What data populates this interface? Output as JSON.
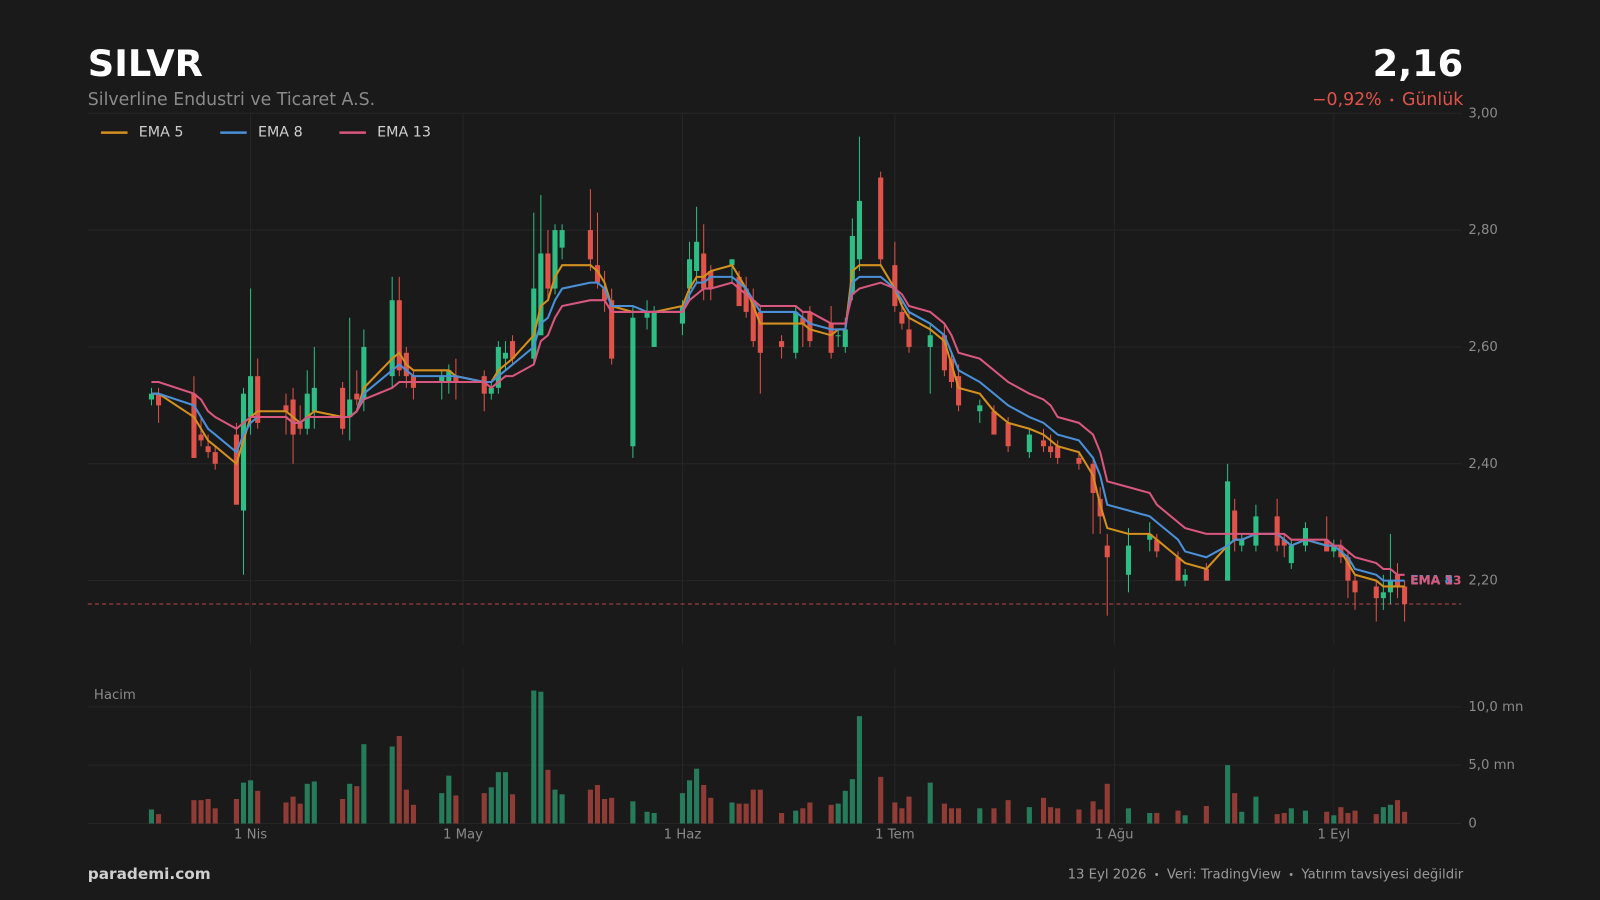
{
  "header": {
    "symbol": "SILVR",
    "company": "Silverline Endustri ve Ticaret A.S.",
    "price": "2,16",
    "change": "−0,92%",
    "period": "Günlük"
  },
  "footer": {
    "site": "parademi.com",
    "notes": [
      "13 Eyl 2026",
      "Veri: TradingView",
      "Yatırım tavsiyesi değildir"
    ]
  },
  "chart_data": {
    "type": "candlestick",
    "x": [
      "2026-03-18",
      "2026-03-19",
      "2026-03-24",
      "2026-03-25",
      "2026-03-26",
      "2026-03-27",
      "2026-03-30",
      "2026-03-31",
      "2026-04-01",
      "2026-04-02",
      "2026-04-06",
      "2026-04-07",
      "2026-04-08",
      "2026-04-09",
      "2026-04-10",
      "2026-04-14",
      "2026-04-15",
      "2026-04-16",
      "2026-04-17",
      "2026-04-21",
      "2026-04-22",
      "2026-04-23",
      "2026-04-24",
      "2026-04-28",
      "2026-04-29",
      "2026-04-30",
      "2026-05-04",
      "2026-05-05",
      "2026-05-06",
      "2026-05-07",
      "2026-05-08",
      "2026-05-11",
      "2026-05-12",
      "2026-05-13",
      "2026-05-14",
      "2026-05-15",
      "2026-05-19",
      "2026-05-20",
      "2026-05-21",
      "2026-05-22",
      "2026-05-25",
      "2026-05-27",
      "2026-05-28",
      "2026-06-01",
      "2026-06-02",
      "2026-06-03",
      "2026-06-04",
      "2026-06-05",
      "2026-06-08",
      "2026-06-09",
      "2026-06-10",
      "2026-06-11",
      "2026-06-12",
      "2026-06-15",
      "2026-06-17",
      "2026-06-18",
      "2026-06-19",
      "2026-06-22",
      "2026-06-23",
      "2026-06-24",
      "2026-06-25",
      "2026-06-26",
      "2026-06-29",
      "2026-07-01",
      "2026-07-02",
      "2026-07-03",
      "2026-07-06",
      "2026-07-08",
      "2026-07-09",
      "2026-07-10",
      "2026-07-13",
      "2026-07-15",
      "2026-07-17",
      "2026-07-20",
      "2026-07-22",
      "2026-07-23",
      "2026-07-24",
      "2026-07-27",
      "2026-07-29",
      "2026-07-30",
      "2026-07-31",
      "2026-08-03",
      "2026-08-06",
      "2026-08-07",
      "2026-08-10",
      "2026-08-11",
      "2026-08-14",
      "2026-08-17",
      "2026-08-18",
      "2026-08-19",
      "2026-08-21",
      "2026-08-24",
      "2026-08-25",
      "2026-08-26",
      "2026-08-28",
      "2026-08-31",
      "2026-09-01",
      "2026-09-02",
      "2026-09-03",
      "2026-09-04",
      "2026-09-07",
      "2026-09-08",
      "2026-09-09",
      "2026-09-10",
      "2026-09-11"
    ],
    "open": [
      2.51,
      2.52,
      2.52,
      2.45,
      2.43,
      2.42,
      2.45,
      2.32,
      2.48,
      2.55,
      2.5,
      2.51,
      2.47,
      2.46,
      2.49,
      2.53,
      2.48,
      2.52,
      2.51,
      2.55,
      2.68,
      2.59,
      2.55,
      2.54,
      2.54,
      2.55,
      2.55,
      2.52,
      2.53,
      2.58,
      2.61,
      2.58,
      2.62,
      2.76,
      2.7,
      2.77,
      2.8,
      2.74,
      2.7,
      2.68,
      2.43,
      2.65,
      2.6,
      2.64,
      2.7,
      2.73,
      2.76,
      2.73,
      2.74,
      2.72,
      2.7,
      2.68,
      2.66,
      2.61,
      2.59,
      2.65,
      2.66,
      2.64,
      2.62,
      2.6,
      2.69,
      2.75,
      2.89,
      2.74,
      2.66,
      2.63,
      2.6,
      2.62,
      2.58,
      2.55,
      2.49,
      2.49,
      2.47,
      2.42,
      2.44,
      2.43,
      2.43,
      2.41,
      2.4,
      2.34,
      2.26,
      2.21,
      2.27,
      2.27,
      2.24,
      2.2,
      2.22,
      2.2,
      2.32,
      2.26,
      2.26,
      2.31,
      2.27,
      2.23,
      2.26,
      2.27,
      2.25,
      2.26,
      2.24,
      2.2,
      2.19,
      2.17,
      2.18,
      2.21,
      2.19
    ],
    "high": [
      2.53,
      2.53,
      2.55,
      2.48,
      2.45,
      2.43,
      2.47,
      2.53,
      2.7,
      2.58,
      2.52,
      2.53,
      2.5,
      2.56,
      2.6,
      2.54,
      2.65,
      2.56,
      2.63,
      2.72,
      2.72,
      2.6,
      2.56,
      2.56,
      2.57,
      2.58,
      2.56,
      2.54,
      2.61,
      2.61,
      2.62,
      2.83,
      2.86,
      2.8,
      2.81,
      2.81,
      2.87,
      2.83,
      2.73,
      2.7,
      2.67,
      2.68,
      2.67,
      2.68,
      2.78,
      2.84,
      2.81,
      2.74,
      2.75,
      2.73,
      2.72,
      2.7,
      2.67,
      2.62,
      2.67,
      2.66,
      2.67,
      2.67,
      2.63,
      2.65,
      2.82,
      2.96,
      2.9,
      2.78,
      2.68,
      2.66,
      2.64,
      2.64,
      2.59,
      2.57,
      2.51,
      2.5,
      2.48,
      2.46,
      2.46,
      2.45,
      2.44,
      2.42,
      2.41,
      2.36,
      2.28,
      2.29,
      2.3,
      2.28,
      2.25,
      2.22,
      2.23,
      2.4,
      2.34,
      2.28,
      2.33,
      2.34,
      2.28,
      2.27,
      2.3,
      2.31,
      2.27,
      2.27,
      2.25,
      2.21,
      2.2,
      2.21,
      2.28,
      2.23,
      2.2
    ],
    "low": [
      2.5,
      2.47,
      2.41,
      2.43,
      2.41,
      2.39,
      2.33,
      2.21,
      2.45,
      2.46,
      2.45,
      2.4,
      2.45,
      2.45,
      2.46,
      2.45,
      2.44,
      2.5,
      2.49,
      2.53,
      2.55,
      2.53,
      2.51,
      2.51,
      2.52,
      2.51,
      2.49,
      2.51,
      2.52,
      2.56,
      2.57,
      2.57,
      2.62,
      2.68,
      2.69,
      2.75,
      2.73,
      2.7,
      2.66,
      2.57,
      2.41,
      2.63,
      2.6,
      2.62,
      2.68,
      2.71,
      2.68,
      2.68,
      2.71,
      2.67,
      2.65,
      2.6,
      2.52,
      2.58,
      2.58,
      2.6,
      2.6,
      2.58,
      2.6,
      2.59,
      2.68,
      2.73,
      2.74,
      2.66,
      2.63,
      2.59,
      2.52,
      2.55,
      2.53,
      2.49,
      2.47,
      2.45,
      2.42,
      2.41,
      2.42,
      2.41,
      2.4,
      2.39,
      2.28,
      2.28,
      2.14,
      2.18,
      2.25,
      2.24,
      2.2,
      2.19,
      2.2,
      2.2,
      2.25,
      2.25,
      2.25,
      2.25,
      2.24,
      2.22,
      2.25,
      2.25,
      2.24,
      2.23,
      2.17,
      2.15,
      2.13,
      2.15,
      2.16,
      2.17,
      2.13
    ],
    "close": [
      2.52,
      2.5,
      2.41,
      2.44,
      2.42,
      2.4,
      2.33,
      2.52,
      2.55,
      2.47,
      2.49,
      2.45,
      2.46,
      2.52,
      2.53,
      2.46,
      2.51,
      2.51,
      2.6,
      2.68,
      2.56,
      2.55,
      2.53,
      2.55,
      2.56,
      2.54,
      2.52,
      2.53,
      2.6,
      2.59,
      2.58,
      2.7,
      2.76,
      2.7,
      2.8,
      2.8,
      2.75,
      2.71,
      2.68,
      2.58,
      2.65,
      2.66,
      2.66,
      2.67,
      2.75,
      2.78,
      2.7,
      2.7,
      2.75,
      2.67,
      2.66,
      2.61,
      2.59,
      2.6,
      2.66,
      2.64,
      2.61,
      2.59,
      2.62,
      2.63,
      2.79,
      2.85,
      2.75,
      2.67,
      2.64,
      2.6,
      2.62,
      2.56,
      2.54,
      2.5,
      2.5,
      2.45,
      2.43,
      2.45,
      2.43,
      2.42,
      2.41,
      2.4,
      2.35,
      2.31,
      2.24,
      2.26,
      2.28,
      2.25,
      2.2,
      2.21,
      2.2,
      2.37,
      2.27,
      2.27,
      2.31,
      2.26,
      2.26,
      2.26,
      2.29,
      2.25,
      2.26,
      2.24,
      2.2,
      2.18,
      2.17,
      2.18,
      2.2,
      2.19,
      2.16
    ],
    "volume": [
      1200000,
      800000,
      2000000,
      2000000,
      2100000,
      1300000,
      2100000,
      3500000,
      3700000,
      2800000,
      1800000,
      2300000,
      1700000,
      3400000,
      3600000,
      2100000,
      3400000,
      3200000,
      6800000,
      6600000,
      7500000,
      2900000,
      1600000,
      2600000,
      4100000,
      2400000,
      2600000,
      3100000,
      4400000,
      4400000,
      2500000,
      11400000,
      11300000,
      4600000,
      2900000,
      2500000,
      2900000,
      3300000,
      2100000,
      2200000,
      1900000,
      1000000,
      900000,
      2600000,
      3700000,
      4700000,
      3300000,
      2200000,
      1800000,
      1700000,
      1700000,
      2900000,
      2900000,
      900000,
      1100000,
      1300000,
      1800000,
      1600000,
      1700000,
      2800000,
      3800000,
      9200000,
      4000000,
      1800000,
      1300000,
      2300000,
      3500000,
      1700000,
      1300000,
      1300000,
      1300000,
      1300000,
      2000000,
      1400000,
      2200000,
      1400000,
      1300000,
      1200000,
      1900000,
      1200000,
      3400000,
      1300000,
      900000,
      900000,
      1100000,
      700000,
      1500000,
      5000000,
      2600000,
      1000000,
      2300000,
      800000,
      900000,
      1300000,
      1100000,
      1000000,
      700000,
      1400000,
      900000,
      1100000,
      800000,
      1400000,
      1600000,
      2000000,
      1000000
    ],
    "series": [
      {
        "name": "EMA 5",
        "color": "#d4901e",
        "values": [
          2.52,
          2.52,
          2.48,
          2.46,
          2.44,
          2.43,
          2.4,
          2.44,
          2.48,
          2.49,
          2.49,
          2.48,
          2.47,
          2.48,
          2.49,
          2.48,
          2.48,
          2.49,
          2.53,
          2.58,
          2.59,
          2.57,
          2.56,
          2.56,
          2.56,
          2.55,
          2.54,
          2.54,
          2.56,
          2.57,
          2.58,
          2.62,
          2.67,
          2.68,
          2.72,
          2.74,
          2.74,
          2.73,
          2.71,
          2.67,
          2.66,
          2.66,
          2.66,
          2.67,
          2.7,
          2.72,
          2.72,
          2.73,
          2.74,
          2.72,
          2.7,
          2.67,
          2.64,
          2.64,
          2.64,
          2.64,
          2.63,
          2.62,
          2.63,
          2.63,
          2.73,
          2.74,
          2.74,
          2.7,
          2.67,
          2.65,
          2.63,
          2.61,
          2.57,
          2.53,
          2.52,
          2.49,
          2.47,
          2.46,
          2.45,
          2.44,
          2.43,
          2.42,
          2.38,
          2.33,
          2.29,
          2.28,
          2.28,
          2.27,
          2.24,
          2.23,
          2.22,
          2.26,
          2.27,
          2.27,
          2.28,
          2.28,
          2.27,
          2.26,
          2.27,
          2.26,
          2.26,
          2.25,
          2.23,
          2.21,
          2.2,
          2.19,
          2.19,
          2.19,
          2.19
        ]
      },
      {
        "name": "EMA 8",
        "color": "#4a90d9",
        "values": [
          2.52,
          2.52,
          2.5,
          2.48,
          2.46,
          2.45,
          2.42,
          2.45,
          2.47,
          2.48,
          2.48,
          2.47,
          2.47,
          2.48,
          2.48,
          2.48,
          2.48,
          2.49,
          2.52,
          2.56,
          2.57,
          2.56,
          2.55,
          2.55,
          2.55,
          2.55,
          2.54,
          2.54,
          2.55,
          2.56,
          2.57,
          2.6,
          2.64,
          2.65,
          2.68,
          2.7,
          2.71,
          2.71,
          2.7,
          2.67,
          2.67,
          2.66,
          2.66,
          2.66,
          2.69,
          2.71,
          2.71,
          2.72,
          2.72,
          2.71,
          2.7,
          2.68,
          2.66,
          2.66,
          2.66,
          2.65,
          2.64,
          2.63,
          2.63,
          2.63,
          2.71,
          2.72,
          2.72,
          2.7,
          2.68,
          2.66,
          2.64,
          2.62,
          2.59,
          2.56,
          2.54,
          2.52,
          2.5,
          2.48,
          2.47,
          2.46,
          2.45,
          2.44,
          2.41,
          2.38,
          2.33,
          2.32,
          2.31,
          2.3,
          2.27,
          2.25,
          2.24,
          2.26,
          2.27,
          2.27,
          2.28,
          2.28,
          2.27,
          2.26,
          2.27,
          2.26,
          2.26,
          2.25,
          2.24,
          2.22,
          2.21,
          2.2,
          2.2,
          2.2,
          2.2
        ]
      },
      {
        "name": "EMA 13",
        "color": "#d9577f",
        "values": [
          2.54,
          2.54,
          2.52,
          2.51,
          2.49,
          2.48,
          2.46,
          2.47,
          2.48,
          2.48,
          2.48,
          2.47,
          2.47,
          2.48,
          2.48,
          2.48,
          2.48,
          2.49,
          2.51,
          2.53,
          2.54,
          2.54,
          2.54,
          2.54,
          2.54,
          2.54,
          2.54,
          2.53,
          2.54,
          2.55,
          2.55,
          2.57,
          2.61,
          2.62,
          2.65,
          2.67,
          2.68,
          2.68,
          2.68,
          2.66,
          2.66,
          2.66,
          2.66,
          2.66,
          2.68,
          2.69,
          2.7,
          2.7,
          2.71,
          2.7,
          2.69,
          2.68,
          2.67,
          2.67,
          2.67,
          2.66,
          2.66,
          2.64,
          2.64,
          2.64,
          2.69,
          2.7,
          2.71,
          2.7,
          2.69,
          2.67,
          2.66,
          2.64,
          2.62,
          2.59,
          2.58,
          2.56,
          2.54,
          2.52,
          2.51,
          2.5,
          2.48,
          2.47,
          2.45,
          2.42,
          2.37,
          2.36,
          2.35,
          2.33,
          2.3,
          2.29,
          2.28,
          2.28,
          2.28,
          2.28,
          2.28,
          2.28,
          2.28,
          2.27,
          2.27,
          2.27,
          2.26,
          2.26,
          2.25,
          2.24,
          2.23,
          2.22,
          2.22,
          2.21,
          2.21
        ]
      }
    ],
    "up_color": "#2ebd85",
    "down_color": "#e0534a",
    "last_price": 2.16,
    "xlim": [
      "2026-03-09",
      "2026-09-19"
    ],
    "xticks": [
      {
        "value": "2026-04-01",
        "label": "1 Nis"
      },
      {
        "value": "2026-05-01",
        "label": "1 May"
      },
      {
        "value": "2026-06-01",
        "label": "1 Haz"
      },
      {
        "value": "2026-07-01",
        "label": "1 Tem"
      },
      {
        "value": "2026-08-01",
        "label": "1 Ağu"
      },
      {
        "value": "2026-09-01",
        "label": "1 Eyl"
      }
    ],
    "ylim": [
      2.09,
      3.0
    ],
    "yticks": [
      {
        "value": 2.2,
        "label": "2,20"
      },
      {
        "value": 2.4,
        "label": "2,40"
      },
      {
        "value": 2.6,
        "label": "2,60"
      },
      {
        "value": 2.8,
        "label": "2,80"
      },
      {
        "value": 3.0,
        "label": "3,00"
      }
    ],
    "grid": true,
    "legend": "top-left",
    "volume_label": "Hacim",
    "volume_ylim": [
      0,
      13300000
    ],
    "volume_yticks": [
      0,
      {
        "value": 5000000,
        "label": "5,0 mn"
      },
      {
        "value": 10000000,
        "label": "10,0 mn"
      }
    ]
  }
}
